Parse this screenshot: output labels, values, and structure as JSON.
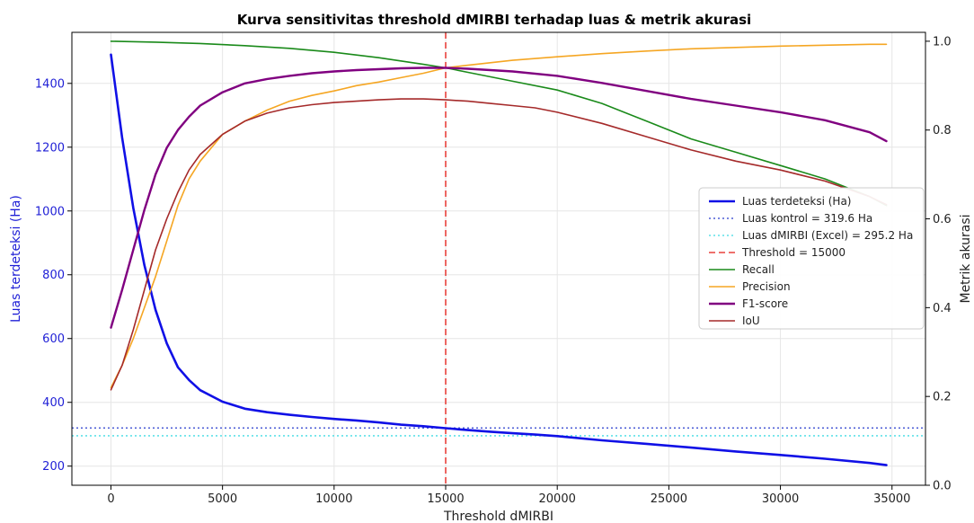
{
  "chart_data": {
    "type": "line",
    "title": "Kurva sensitivitas threshold dMIRBI terhadap luas & metrik akurasi",
    "xlabel": "Threshold dMIRBI",
    "ylabel_left": "Luas terdeteksi (Ha)",
    "ylabel_right": "Metrik akurasi",
    "xlim": [
      -1750,
      36500
    ],
    "ylim_left": [
      140,
      1560
    ],
    "ylim_right": [
      0.0,
      1.02
    ],
    "x_ticks": [
      0,
      5000,
      10000,
      15000,
      20000,
      25000,
      30000,
      35000
    ],
    "y_ticks_left": [
      200,
      400,
      600,
      800,
      1000,
      1200,
      1400
    ],
    "y_ticks_right": [
      "0.0",
      "0.2",
      "0.4",
      "0.6",
      "0.8",
      "1.0"
    ],
    "y_ticks_right_values": [
      0.0,
      0.2,
      0.4,
      0.6,
      0.8,
      1.0
    ],
    "grid": true,
    "legend_position": "center-right",
    "hlines": [
      {
        "name": "Luas kontrol = 319.6 Ha",
        "y": 319.6,
        "axis": "left",
        "color": "#4b5bd6",
        "style": "dotted"
      },
      {
        "name": "Luas dMIRBI (Excel) = 295.2 Ha",
        "y": 295.2,
        "axis": "left",
        "color": "#5fe0e8",
        "style": "dotted"
      }
    ],
    "vlines": [
      {
        "name": "Threshold = 15000",
        "x": 15000,
        "color": "#e8413c",
        "style": "dashed"
      }
    ],
    "series": [
      {
        "name": "Luas terdeteksi (Ha)",
        "axis": "left",
        "color": "#1010e6",
        "width": 2.6,
        "x": [
          0,
          500,
          1000,
          1500,
          2000,
          2500,
          3000,
          3500,
          4000,
          5000,
          6000,
          7000,
          8000,
          9000,
          10000,
          11000,
          12000,
          13000,
          14000,
          15000,
          16000,
          17000,
          18000,
          19000,
          20000,
          22000,
          24000,
          26000,
          28000,
          30000,
          32000,
          34000,
          34750
        ],
        "y": [
          1490,
          1230,
          1010,
          830,
          690,
          585,
          510,
          470,
          438,
          402,
          380,
          369,
          361,
          354,
          348,
          343,
          337,
          330,
          325,
          319,
          313,
          308,
          303,
          299,
          294,
          281,
          270,
          258,
          246,
          235,
          223,
          210,
          203
        ]
      },
      {
        "name": "Recall",
        "axis": "right",
        "color": "#1a8a1a",
        "width": 1.6,
        "x": [
          0,
          2000,
          4000,
          6000,
          8000,
          10000,
          12000,
          14000,
          15000,
          16000,
          18000,
          20000,
          22000,
          24000,
          26000,
          28000,
          30000,
          32000,
          34000,
          34750
        ],
        "y": [
          1.0,
          0.998,
          0.995,
          0.99,
          0.984,
          0.975,
          0.963,
          0.948,
          0.94,
          0.93,
          0.91,
          0.89,
          0.86,
          0.82,
          0.78,
          0.75,
          0.72,
          0.69,
          0.65,
          0.63
        ]
      },
      {
        "name": "Precision",
        "axis": "right",
        "color": "#f5a623",
        "width": 1.6,
        "x": [
          0,
          500,
          1000,
          1500,
          2000,
          2500,
          3000,
          3500,
          4000,
          5000,
          6000,
          7000,
          8000,
          9000,
          10000,
          11000,
          12000,
          13000,
          14000,
          15000,
          16000,
          18000,
          20000,
          22000,
          24000,
          26000,
          28000,
          30000,
          32000,
          34000,
          34750
        ],
        "y": [
          0.22,
          0.27,
          0.33,
          0.4,
          0.47,
          0.55,
          0.63,
          0.69,
          0.73,
          0.79,
          0.82,
          0.845,
          0.865,
          0.878,
          0.888,
          0.9,
          0.908,
          0.918,
          0.928,
          0.94,
          0.946,
          0.957,
          0.965,
          0.972,
          0.978,
          0.983,
          0.986,
          0.989,
          0.991,
          0.993,
          0.993
        ]
      },
      {
        "name": "F1-score",
        "axis": "right",
        "color": "#800080",
        "width": 2.4,
        "x": [
          0,
          500,
          1000,
          1500,
          2000,
          2500,
          3000,
          3500,
          4000,
          5000,
          6000,
          7000,
          8000,
          9000,
          10000,
          11000,
          12000,
          13000,
          14000,
          15000,
          16000,
          18000,
          20000,
          22000,
          24000,
          26000,
          28000,
          30000,
          32000,
          34000,
          34750
        ],
        "y": [
          0.355,
          0.44,
          0.53,
          0.62,
          0.7,
          0.76,
          0.8,
          0.83,
          0.855,
          0.885,
          0.905,
          0.915,
          0.922,
          0.928,
          0.932,
          0.935,
          0.937,
          0.939,
          0.94,
          0.94,
          0.938,
          0.932,
          0.922,
          0.906,
          0.888,
          0.87,
          0.855,
          0.84,
          0.822,
          0.795,
          0.775
        ]
      },
      {
        "name": "IoU",
        "axis": "right",
        "color": "#a52a2a",
        "width": 1.6,
        "x": [
          0,
          500,
          1000,
          1500,
          2000,
          2500,
          3000,
          3500,
          4000,
          5000,
          6000,
          7000,
          8000,
          9000,
          10000,
          11000,
          12000,
          13000,
          14000,
          15000,
          16000,
          17000,
          18000,
          19000,
          20000,
          22000,
          24000,
          26000,
          28000,
          30000,
          32000,
          34000,
          34750
        ],
        "y": [
          0.215,
          0.27,
          0.35,
          0.44,
          0.53,
          0.6,
          0.66,
          0.71,
          0.745,
          0.79,
          0.82,
          0.838,
          0.85,
          0.857,
          0.862,
          0.865,
          0.868,
          0.87,
          0.87,
          0.868,
          0.865,
          0.86,
          0.855,
          0.85,
          0.84,
          0.815,
          0.785,
          0.755,
          0.73,
          0.71,
          0.685,
          0.65,
          0.632
        ]
      }
    ],
    "legend_items": [
      {
        "label": "Luas terdeteksi (Ha)",
        "color": "#1010e6",
        "style": "solid",
        "width": 2.6
      },
      {
        "label": "Luas kontrol = 319.6 Ha",
        "color": "#4b5bd6",
        "style": "dotted",
        "width": 1.6
      },
      {
        "label": "Luas dMIRBI (Excel) = 295.2 Ha",
        "color": "#5fe0e8",
        "style": "dotted",
        "width": 1.6
      },
      {
        "label": "Threshold = 15000",
        "color": "#e8413c",
        "style": "dashed",
        "width": 1.6
      },
      {
        "label": "Recall",
        "color": "#1a8a1a",
        "style": "solid",
        "width": 1.6
      },
      {
        "label": "Precision",
        "color": "#f5a623",
        "style": "solid",
        "width": 1.6
      },
      {
        "label": "F1-score",
        "color": "#800080",
        "style": "solid",
        "width": 2.4
      },
      {
        "label": "IoU",
        "color": "#a52a2a",
        "style": "solid",
        "width": 1.6
      }
    ]
  }
}
